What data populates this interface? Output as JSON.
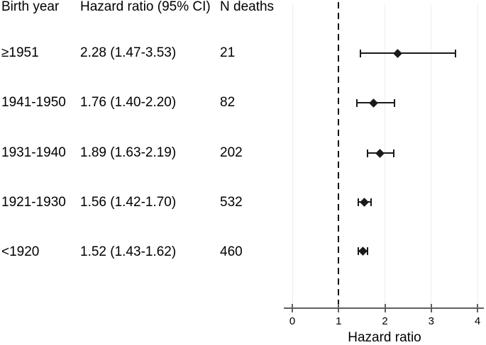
{
  "table": {
    "headers": {
      "birth_year": "Birth year",
      "hazard_ratio": "Hazard ratio (95% CI)",
      "n_deaths": "N deaths"
    },
    "rows": [
      {
        "birth_year": "≥1951",
        "hazard_ratio": "2.28 (1.47-3.53)",
        "n_deaths": "21"
      },
      {
        "birth_year": "1941-1950",
        "hazard_ratio": "1.76 (1.40-2.20)",
        "n_deaths": "82"
      },
      {
        "birth_year": "1931-1940",
        "hazard_ratio": "1.89 (1.63-2.19)",
        "n_deaths": "202"
      },
      {
        "birth_year": "1921-1930",
        "hazard_ratio": "1.56 (1.42-1.70)",
        "n_deaths": "532"
      },
      {
        "birth_year": "<1920",
        "hazard_ratio": "1.52 (1.43-1.62)",
        "n_deaths": "460"
      }
    ]
  },
  "chart_data": {
    "type": "scatter",
    "subtype": "forest-plot",
    "title": "",
    "xlabel": "Hazard ratio",
    "ylabel": "",
    "xlim": [
      0,
      4
    ],
    "x_ticks": [
      0,
      1,
      2,
      3,
      4
    ],
    "gridlines_x": [
      0,
      2,
      3,
      4
    ],
    "grid": "on",
    "reference_line_x": 1,
    "reference_line_style": "dashed",
    "series": [
      {
        "label": "≥1951",
        "hr": 2.28,
        "ci_low": 1.47,
        "ci_high": 3.53,
        "n_deaths": 21
      },
      {
        "label": "1941-1950",
        "hr": 1.76,
        "ci_low": 1.4,
        "ci_high": 2.2,
        "n_deaths": 82
      },
      {
        "label": "1931-1940",
        "hr": 1.89,
        "ci_low": 1.63,
        "ci_high": 2.19,
        "n_deaths": 202
      },
      {
        "label": "1921-1930",
        "hr": 1.56,
        "ci_low": 1.42,
        "ci_high": 1.7,
        "n_deaths": 532
      },
      {
        "label": "<1920",
        "hr": 1.52,
        "ci_low": 1.43,
        "ci_high": 1.62,
        "n_deaths": 460
      }
    ],
    "colors": {
      "marker": "#1a1a1a",
      "axis": "#606060",
      "gridline": "#ededed",
      "reference_line": "#111111",
      "text": "#000000"
    }
  }
}
